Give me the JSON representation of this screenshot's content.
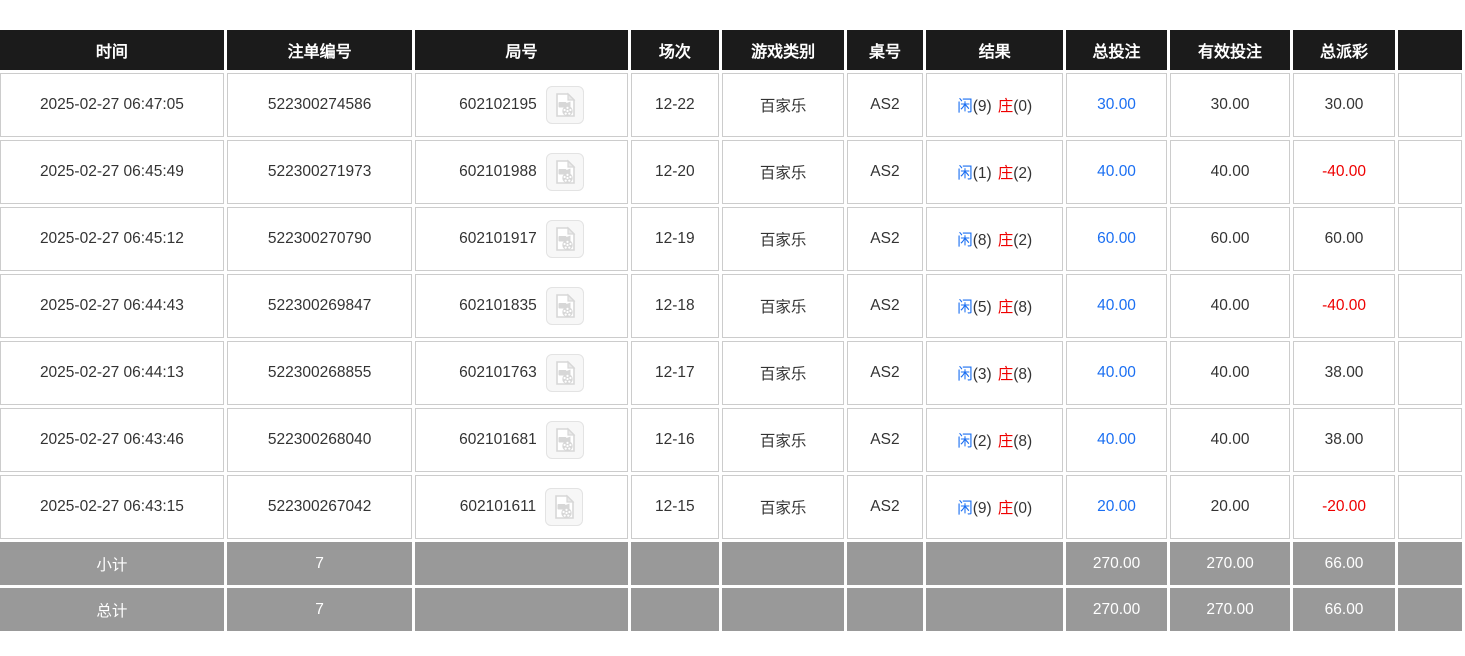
{
  "colors": {
    "header_bg": "#1b1b1b",
    "summary_bg": "#999999",
    "border": "#cccccc",
    "text": "#333333",
    "blue": "#1b6ff2",
    "red": "#ee0000"
  },
  "table": {
    "columns": [
      {
        "key": "time",
        "label": "时间"
      },
      {
        "key": "bet_id",
        "label": "注单编号"
      },
      {
        "key": "round_id",
        "label": "局号"
      },
      {
        "key": "session",
        "label": "场次"
      },
      {
        "key": "game_type",
        "label": "游戏类别"
      },
      {
        "key": "table_no",
        "label": "桌号"
      },
      {
        "key": "result",
        "label": "结果"
      },
      {
        "key": "total_bet",
        "label": "总投注"
      },
      {
        "key": "valid_bet",
        "label": "有效投注"
      },
      {
        "key": "total_payout",
        "label": "总派彩"
      },
      {
        "key": "extra",
        "label": ""
      }
    ],
    "video_icon": "video-file-icon",
    "rows": [
      {
        "time": "2025-02-27 06:47:05",
        "bet_id": "522300274586",
        "round_id": "602102195",
        "session": "12-22",
        "game_type": "百家乐",
        "table_no": "AS2",
        "result": {
          "player_label": "闲",
          "player_score": "(9)",
          "banker_label": "庄",
          "banker_score": "(0)"
        },
        "total_bet": "30.00",
        "valid_bet": "30.00",
        "total_payout": "30.00"
      },
      {
        "time": "2025-02-27 06:45:49",
        "bet_id": "522300271973",
        "round_id": "602101988",
        "session": "12-20",
        "game_type": "百家乐",
        "table_no": "AS2",
        "result": {
          "player_label": "闲",
          "player_score": "(1)",
          "banker_label": "庄",
          "banker_score": "(2)"
        },
        "total_bet": "40.00",
        "valid_bet": "40.00",
        "total_payout": "-40.00"
      },
      {
        "time": "2025-02-27 06:45:12",
        "bet_id": "522300270790",
        "round_id": "602101917",
        "session": "12-19",
        "game_type": "百家乐",
        "table_no": "AS2",
        "result": {
          "player_label": "闲",
          "player_score": "(8)",
          "banker_label": "庄",
          "banker_score": "(2)"
        },
        "total_bet": "60.00",
        "valid_bet": "60.00",
        "total_payout": "60.00"
      },
      {
        "time": "2025-02-27 06:44:43",
        "bet_id": "522300269847",
        "round_id": "602101835",
        "session": "12-18",
        "game_type": "百家乐",
        "table_no": "AS2",
        "result": {
          "player_label": "闲",
          "player_score": "(5)",
          "banker_label": "庄",
          "banker_score": "(8)"
        },
        "total_bet": "40.00",
        "valid_bet": "40.00",
        "total_payout": "-40.00"
      },
      {
        "time": "2025-02-27 06:44:13",
        "bet_id": "522300268855",
        "round_id": "602101763",
        "session": "12-17",
        "game_type": "百家乐",
        "table_no": "AS2",
        "result": {
          "player_label": "闲",
          "player_score": "(3)",
          "banker_label": "庄",
          "banker_score": "(8)"
        },
        "total_bet": "40.00",
        "valid_bet": "40.00",
        "total_payout": "38.00"
      },
      {
        "time": "2025-02-27 06:43:46",
        "bet_id": "522300268040",
        "round_id": "602101681",
        "session": "12-16",
        "game_type": "百家乐",
        "table_no": "AS2",
        "result": {
          "player_label": "闲",
          "player_score": "(2)",
          "banker_label": "庄",
          "banker_score": "(8)"
        },
        "total_bet": "40.00",
        "valid_bet": "40.00",
        "total_payout": "38.00"
      },
      {
        "time": "2025-02-27 06:43:15",
        "bet_id": "522300267042",
        "round_id": "602101611",
        "session": "12-15",
        "game_type": "百家乐",
        "table_no": "AS2",
        "result": {
          "player_label": "闲",
          "player_score": "(9)",
          "banker_label": "庄",
          "banker_score": "(0)"
        },
        "total_bet": "20.00",
        "valid_bet": "20.00",
        "total_payout": "-20.00"
      }
    ],
    "subtotal": {
      "label": "小计",
      "count": "7",
      "total_bet": "270.00",
      "valid_bet": "270.00",
      "total_payout": "66.00"
    },
    "total": {
      "label": "总计",
      "count": "7",
      "total_bet": "270.00",
      "valid_bet": "270.00",
      "total_payout": "66.00"
    }
  }
}
